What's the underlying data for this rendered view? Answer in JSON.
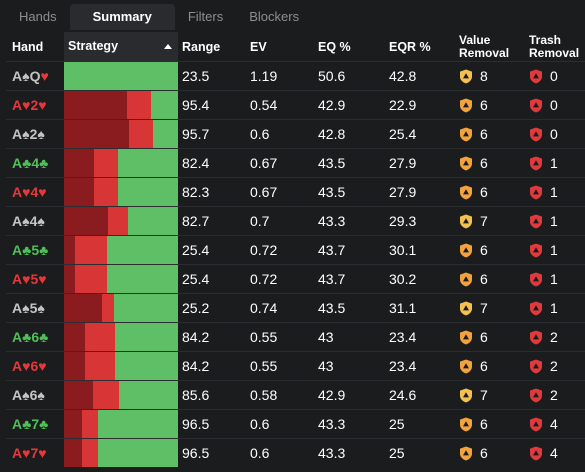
{
  "tabs": [
    {
      "label": "Hands",
      "active": false
    },
    {
      "label": "Summary",
      "active": true
    },
    {
      "label": "Filters",
      "active": false
    },
    {
      "label": "Blockers",
      "active": false
    }
  ],
  "columns": {
    "hand": "Hand",
    "strategy": "Strategy",
    "range": "Range",
    "ev": "EV",
    "eq": "EQ %",
    "eqr": "EQR %",
    "value_removal": [
      "Value",
      "Removal"
    ],
    "trash_removal": [
      "Trash",
      "Removal"
    ]
  },
  "colors": {
    "spade": "#c4c4c4",
    "heart": "#e6383b",
    "club": "#4fbf57",
    "check": "#5fbf66",
    "bet_small": "#d83537",
    "bet_big": "#8a1c1f",
    "value_shield_yellow": "#f2c14e",
    "value_shield_orange": "#f3a33b",
    "trash_shield": "#e03a3d"
  },
  "rows": [
    {
      "hand": "A♠Q♥",
      "cards": [
        {
          "t": "A",
          "s": "spade"
        },
        {
          "t": "♠",
          "s": "spade"
        },
        {
          "t": "Q",
          "s": "spade"
        },
        {
          "t": "♥",
          "s": "heart"
        }
      ],
      "strategy": {
        "big": 0,
        "small": 0,
        "check": 100
      },
      "range": "23.5",
      "ev": "1.19",
      "eq": "50.6",
      "eqr": "42.8",
      "value": "8",
      "value_shield": "yellow",
      "trash": "0"
    },
    {
      "hand": "A♥2♥",
      "cards": [
        {
          "t": "A",
          "s": "heart"
        },
        {
          "t": "♥",
          "s": "heart"
        },
        {
          "t": "2",
          "s": "heart"
        },
        {
          "t": "♥",
          "s": "heart"
        }
      ],
      "strategy": {
        "big": 55,
        "small": 21,
        "check": 24
      },
      "range": "95.4",
      "ev": "0.54",
      "eq": "42.9",
      "eqr": "22.9",
      "value": "6",
      "value_shield": "orange",
      "trash": "0"
    },
    {
      "hand": "A♠2♠",
      "cards": [
        {
          "t": "A",
          "s": "spade"
        },
        {
          "t": "♠",
          "s": "spade"
        },
        {
          "t": "2",
          "s": "spade"
        },
        {
          "t": "♠",
          "s": "spade"
        }
      ],
      "strategy": {
        "big": 57,
        "small": 21,
        "check": 22
      },
      "range": "95.7",
      "ev": "0.6",
      "eq": "42.8",
      "eqr": "25.4",
      "value": "6",
      "value_shield": "orange",
      "trash": "0"
    },
    {
      "hand": "A♣4♣",
      "cards": [
        {
          "t": "A",
          "s": "club"
        },
        {
          "t": "♣",
          "s": "club"
        },
        {
          "t": "4",
          "s": "club"
        },
        {
          "t": "♣",
          "s": "club"
        }
      ],
      "strategy": {
        "big": 26,
        "small": 21,
        "check": 53
      },
      "range": "82.4",
      "ev": "0.67",
      "eq": "43.5",
      "eqr": "27.9",
      "value": "6",
      "value_shield": "orange",
      "trash": "1"
    },
    {
      "hand": "A♥4♥",
      "cards": [
        {
          "t": "A",
          "s": "heart"
        },
        {
          "t": "♥",
          "s": "heart"
        },
        {
          "t": "4",
          "s": "heart"
        },
        {
          "t": "♥",
          "s": "heart"
        }
      ],
      "strategy": {
        "big": 26,
        "small": 21,
        "check": 53
      },
      "range": "82.3",
      "ev": "0.67",
      "eq": "43.5",
      "eqr": "27.9",
      "value": "6",
      "value_shield": "orange",
      "trash": "1"
    },
    {
      "hand": "A♠4♠",
      "cards": [
        {
          "t": "A",
          "s": "spade"
        },
        {
          "t": "♠",
          "s": "spade"
        },
        {
          "t": "4",
          "s": "spade"
        },
        {
          "t": "♠",
          "s": "spade"
        }
      ],
      "strategy": {
        "big": 39,
        "small": 17,
        "check": 44
      },
      "range": "82.7",
      "ev": "0.7",
      "eq": "43.3",
      "eqr": "29.3",
      "value": "7",
      "value_shield": "yellow",
      "trash": "1"
    },
    {
      "hand": "A♣5♣",
      "cards": [
        {
          "t": "A",
          "s": "club"
        },
        {
          "t": "♣",
          "s": "club"
        },
        {
          "t": "5",
          "s": "club"
        },
        {
          "t": "♣",
          "s": "club"
        }
      ],
      "strategy": {
        "big": 10,
        "small": 28,
        "check": 62
      },
      "range": "25.4",
      "ev": "0.72",
      "eq": "43.7",
      "eqr": "30.1",
      "value": "6",
      "value_shield": "orange",
      "trash": "1"
    },
    {
      "hand": "A♥5♥",
      "cards": [
        {
          "t": "A",
          "s": "heart"
        },
        {
          "t": "♥",
          "s": "heart"
        },
        {
          "t": "5",
          "s": "heart"
        },
        {
          "t": "♥",
          "s": "heart"
        }
      ],
      "strategy": {
        "big": 10,
        "small": 28,
        "check": 62
      },
      "range": "25.4",
      "ev": "0.72",
      "eq": "43.7",
      "eqr": "30.2",
      "value": "6",
      "value_shield": "orange",
      "trash": "1"
    },
    {
      "hand": "A♠5♠",
      "cards": [
        {
          "t": "A",
          "s": "spade"
        },
        {
          "t": "♠",
          "s": "spade"
        },
        {
          "t": "5",
          "s": "spade"
        },
        {
          "t": "♠",
          "s": "spade"
        }
      ],
      "strategy": {
        "big": 33,
        "small": 11,
        "check": 56
      },
      "range": "25.2",
      "ev": "0.74",
      "eq": "43.5",
      "eqr": "31.1",
      "value": "7",
      "value_shield": "yellow",
      "trash": "1"
    },
    {
      "hand": "A♣6♣",
      "cards": [
        {
          "t": "A",
          "s": "club"
        },
        {
          "t": "♣",
          "s": "club"
        },
        {
          "t": "6",
          "s": "club"
        },
        {
          "t": "♣",
          "s": "club"
        }
      ],
      "strategy": {
        "big": 18,
        "small": 27,
        "check": 55
      },
      "range": "84.2",
      "ev": "0.55",
      "eq": "43",
      "eqr": "23.4",
      "value": "6",
      "value_shield": "orange",
      "trash": "2"
    },
    {
      "hand": "A♥6♥",
      "cards": [
        {
          "t": "A",
          "s": "heart"
        },
        {
          "t": "♥",
          "s": "heart"
        },
        {
          "t": "6",
          "s": "heart"
        },
        {
          "t": "♥",
          "s": "heart"
        }
      ],
      "strategy": {
        "big": 18,
        "small": 27,
        "check": 55
      },
      "range": "84.2",
      "ev": "0.55",
      "eq": "43",
      "eqr": "23.4",
      "value": "6",
      "value_shield": "orange",
      "trash": "2"
    },
    {
      "hand": "A♠6♠",
      "cards": [
        {
          "t": "A",
          "s": "spade"
        },
        {
          "t": "♠",
          "s": "spade"
        },
        {
          "t": "6",
          "s": "spade"
        },
        {
          "t": "♠",
          "s": "spade"
        }
      ],
      "strategy": {
        "big": 25,
        "small": 23,
        "check": 52
      },
      "range": "85.6",
      "ev": "0.58",
      "eq": "42.9",
      "eqr": "24.6",
      "value": "7",
      "value_shield": "yellow",
      "trash": "2"
    },
    {
      "hand": "A♣7♣",
      "cards": [
        {
          "t": "A",
          "s": "club"
        },
        {
          "t": "♣",
          "s": "club"
        },
        {
          "t": "7",
          "s": "club"
        },
        {
          "t": "♣",
          "s": "club"
        }
      ],
      "strategy": {
        "big": 16,
        "small": 14,
        "check": 70
      },
      "range": "96.5",
      "ev": "0.6",
      "eq": "43.3",
      "eqr": "25",
      "value": "6",
      "value_shield": "orange",
      "trash": "4"
    },
    {
      "hand": "A♥7♥",
      "cards": [
        {
          "t": "A",
          "s": "heart"
        },
        {
          "t": "♥",
          "s": "heart"
        },
        {
          "t": "7",
          "s": "heart"
        },
        {
          "t": "♥",
          "s": "heart"
        }
      ],
      "strategy": {
        "big": 16,
        "small": 14,
        "check": 70
      },
      "range": "96.5",
      "ev": "0.6",
      "eq": "43.3",
      "eqr": "25",
      "value": "6",
      "value_shield": "orange",
      "trash": "4"
    }
  ]
}
